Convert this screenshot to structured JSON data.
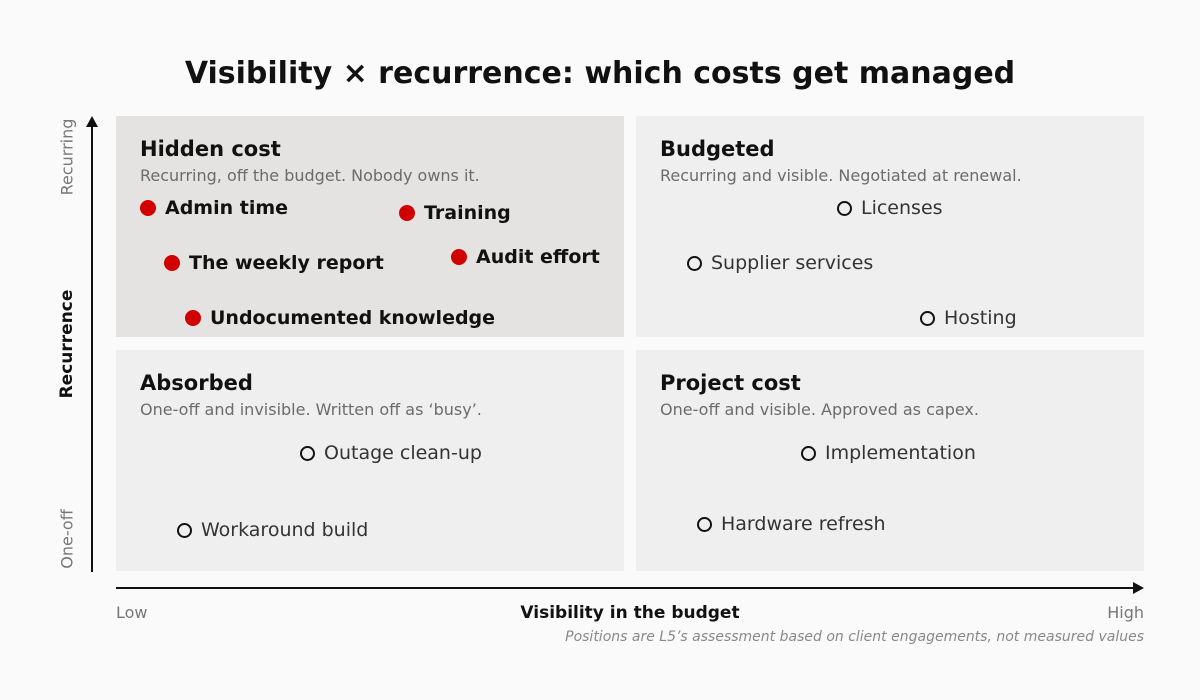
{
  "title": "Visibility × recurrence: which costs get managed",
  "axes": {
    "y_label": "Recurrence",
    "y_top": "Recurring",
    "y_bottom": "One-off",
    "x_label": "Visibility in the budget",
    "x_left": "Low",
    "x_right": "High"
  },
  "quadrants": {
    "hidden": {
      "title": "Hidden cost",
      "desc": "Recurring, off the budget. Nobody owns it.",
      "highlighted": true,
      "items": [
        "Admin time",
        "Training",
        "The weekly report",
        "Audit effort",
        "Undocumented knowledge"
      ]
    },
    "budgeted": {
      "title": "Budgeted",
      "desc": "Recurring and visible. Negotiated at renewal.",
      "items": [
        "Licenses",
        "Supplier services",
        "Hosting"
      ]
    },
    "absorbed": {
      "title": "Absorbed",
      "desc": "One-off and invisible. Written off as ‘busy’.",
      "items": [
        "Outage clean-up",
        "Workaround build"
      ]
    },
    "project": {
      "title": "Project cost",
      "desc": "One-off and visible. Approved as capex.",
      "items": [
        "Implementation",
        "Hardware refresh"
      ]
    }
  },
  "note": "Positions are L5’s assessment based on client engagements, not measured values",
  "colors": {
    "highlight_marker": "#d00000",
    "highlight_quadrant_bg": "#e4e3e1",
    "quadrant_bg": "#efefef"
  }
}
